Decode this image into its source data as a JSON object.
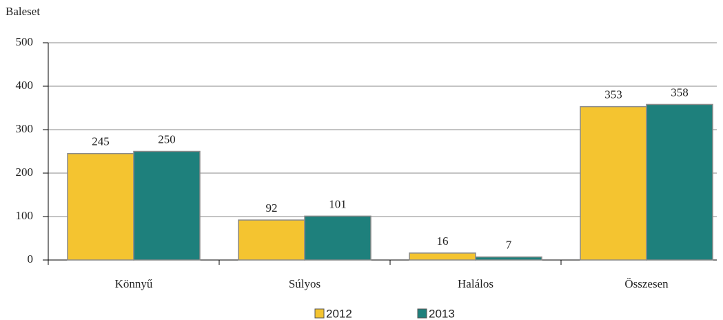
{
  "chart_data": {
    "type": "bar",
    "y_label": "Baleset",
    "categories": [
      "Könnyű",
      "Súlyos",
      "Halálos",
      "Összesen"
    ],
    "series": [
      {
        "name": "2012",
        "color": "#f4c430",
        "values": [
          245,
          92,
          16,
          353
        ]
      },
      {
        "name": "2013",
        "color": "#1e807c",
        "values": [
          250,
          101,
          7,
          358
        ]
      }
    ],
    "ylim": [
      0,
      500
    ],
    "yticks": [
      0,
      100,
      200,
      300,
      400,
      500
    ],
    "grid": true,
    "legend": "bottom"
  }
}
